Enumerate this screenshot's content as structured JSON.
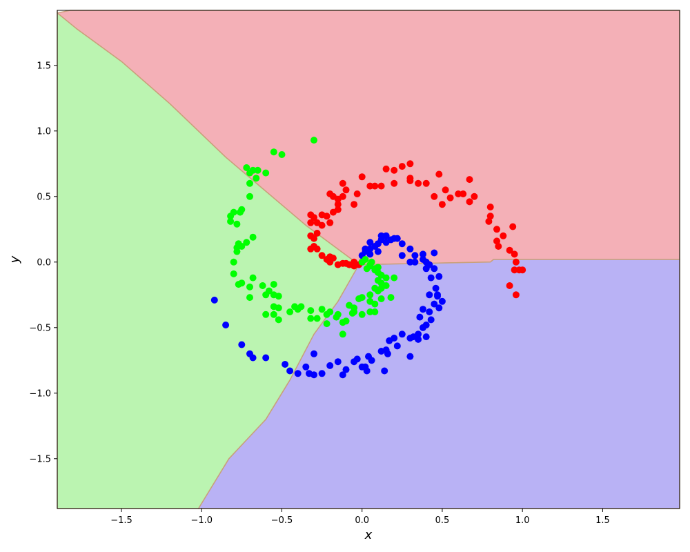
{
  "chart_data": {
    "type": "scatter",
    "title": "",
    "xlabel": "x",
    "ylabel": "y",
    "xlim": [
      -1.9,
      1.98
    ],
    "ylim": [
      -1.88,
      1.92
    ],
    "grid": false,
    "legend": "none",
    "xticks": [
      -1.5,
      -1.0,
      -0.5,
      0.0,
      0.5,
      1.0,
      1.5
    ],
    "yticks": [
      -1.5,
      -1.0,
      -0.5,
      0.0,
      0.5,
      1.0,
      1.5
    ],
    "xtick_labels": [
      "−1.5",
      "−1.0",
      "−0.5",
      "0.0",
      "0.5",
      "1.0",
      "1.5"
    ],
    "ytick_labels": [
      "−1.5",
      "−1.0",
      "−0.5",
      "0.0",
      "0.5",
      "1.0",
      "1.5"
    ],
    "decision_regions": [
      {
        "class": "red",
        "color": "#f4b0b7",
        "polygon": [
          [
            -1.9,
            1.9
          ],
          [
            -1.82,
            1.92
          ],
          [
            1.98,
            1.92
          ],
          [
            1.98,
            0.02
          ],
          [
            0.82,
            0.02
          ],
          [
            0.8,
            0.0
          ],
          [
            -0.02,
            -0.02
          ],
          [
            -0.35,
            0.28
          ],
          [
            -0.85,
            0.8
          ],
          [
            -1.2,
            1.21
          ],
          [
            -1.5,
            1.53
          ],
          [
            -1.78,
            1.78
          ]
        ]
      },
      {
        "class": "blue",
        "color": "#b9b2f5",
        "polygon": [
          [
            -0.02,
            -0.02
          ],
          [
            0.8,
            0.0
          ],
          [
            0.82,
            0.02
          ],
          [
            1.98,
            0.02
          ],
          [
            1.98,
            -1.88
          ],
          [
            -1.02,
            -1.88
          ],
          [
            -0.83,
            -1.5
          ],
          [
            -0.6,
            -1.2
          ],
          [
            -0.45,
            -0.9
          ],
          [
            -0.3,
            -0.55
          ],
          [
            -0.15,
            -0.3
          ]
        ]
      },
      {
        "class": "green",
        "color": "#bbf4b1",
        "polygon": [
          [
            -1.9,
            1.92
          ],
          [
            -1.9,
            1.9
          ],
          [
            -1.78,
            1.78
          ],
          [
            -1.5,
            1.53
          ],
          [
            -1.2,
            1.21
          ],
          [
            -0.85,
            0.8
          ],
          [
            -0.35,
            0.28
          ],
          [
            -0.02,
            -0.02
          ],
          [
            -0.15,
            -0.3
          ],
          [
            -0.3,
            -0.55
          ],
          [
            -0.45,
            -0.9
          ],
          [
            -0.6,
            -1.2
          ],
          [
            -0.83,
            -1.5
          ],
          [
            -1.02,
            -1.88
          ],
          [
            -1.9,
            -1.88
          ]
        ]
      }
    ],
    "boundary_color": "#c9a07a",
    "series": [
      {
        "color": "#ff0000",
        "points": [
          [
            -0.05,
            0.0
          ],
          [
            -0.02,
            -0.02
          ],
          [
            -0.08,
            -0.02
          ],
          [
            -0.12,
            -0.01
          ],
          [
            -0.15,
            -0.02
          ],
          [
            -0.2,
            0.0
          ],
          [
            -0.22,
            0.02
          ],
          [
            -0.18,
            0.03
          ],
          [
            -0.25,
            0.05
          ],
          [
            -0.28,
            0.1
          ],
          [
            -0.3,
            0.12
          ],
          [
            -0.32,
            0.1
          ],
          [
            -0.3,
            0.18
          ],
          [
            -0.32,
            0.2
          ],
          [
            -0.28,
            0.22
          ],
          [
            -0.32,
            0.3
          ],
          [
            -0.28,
            0.3
          ],
          [
            -0.25,
            0.36
          ],
          [
            -0.32,
            0.36
          ],
          [
            -0.3,
            0.34
          ],
          [
            -0.22,
            0.35
          ],
          [
            -0.2,
            0.3
          ],
          [
            -0.18,
            0.38
          ],
          [
            -0.15,
            0.44
          ],
          [
            -0.18,
            0.5
          ],
          [
            -0.15,
            0.48
          ],
          [
            -0.12,
            0.5
          ],
          [
            -0.1,
            0.55
          ],
          [
            -0.12,
            0.6
          ],
          [
            -0.05,
            0.44
          ],
          [
            -0.03,
            0.52
          ],
          [
            0.0,
            0.65
          ],
          [
            0.08,
            0.58
          ],
          [
            0.12,
            0.58
          ],
          [
            0.15,
            0.71
          ],
          [
            0.2,
            0.6
          ],
          [
            0.2,
            0.7
          ],
          [
            0.25,
            0.73
          ],
          [
            0.3,
            0.75
          ],
          [
            0.3,
            0.62
          ],
          [
            0.35,
            0.6
          ],
          [
            0.4,
            0.6
          ],
          [
            0.45,
            0.5
          ],
          [
            0.48,
            0.67
          ],
          [
            0.52,
            0.55
          ],
          [
            0.5,
            0.44
          ],
          [
            0.55,
            0.49
          ],
          [
            0.6,
            0.52
          ],
          [
            0.63,
            0.52
          ],
          [
            0.67,
            0.46
          ],
          [
            0.67,
            0.63
          ],
          [
            0.7,
            0.5
          ],
          [
            0.8,
            0.42
          ],
          [
            0.8,
            0.35
          ],
          [
            0.79,
            0.31
          ],
          [
            0.84,
            0.25
          ],
          [
            0.88,
            0.2
          ],
          [
            0.84,
            0.16
          ],
          [
            0.85,
            0.12
          ],
          [
            0.92,
            0.09
          ],
          [
            0.94,
            0.27
          ],
          [
            0.95,
            0.06
          ],
          [
            0.96,
            0.0
          ],
          [
            0.95,
            -0.06
          ],
          [
            0.98,
            -0.06
          ],
          [
            1.0,
            -0.06
          ],
          [
            0.92,
            -0.18
          ],
          [
            0.96,
            -0.25
          ],
          [
            -0.1,
            -0.01
          ],
          [
            -0.05,
            -0.03
          ],
          [
            0.0,
            0.0
          ],
          [
            -0.2,
            0.04
          ],
          [
            -0.25,
            0.28
          ],
          [
            -0.2,
            0.52
          ],
          [
            -0.15,
            0.4
          ],
          [
            0.05,
            0.58
          ],
          [
            0.3,
            0.64
          ]
        ]
      },
      {
        "color": "#0000ff",
        "points": [
          [
            0.0,
            0.05
          ],
          [
            0.02,
            0.08
          ],
          [
            0.05,
            0.15
          ],
          [
            0.08,
            0.12
          ],
          [
            0.1,
            0.14
          ],
          [
            0.12,
            0.17
          ],
          [
            0.15,
            0.2
          ],
          [
            0.15,
            0.15
          ],
          [
            0.18,
            0.17
          ],
          [
            0.2,
            0.18
          ],
          [
            0.22,
            0.18
          ],
          [
            0.25,
            0.14
          ],
          [
            0.3,
            0.1
          ],
          [
            0.25,
            0.05
          ],
          [
            0.33,
            0.05
          ],
          [
            0.38,
            0.06
          ],
          [
            0.38,
            0.02
          ],
          [
            0.42,
            -0.02
          ],
          [
            0.4,
            0.0
          ],
          [
            0.45,
            0.07
          ],
          [
            0.45,
            -0.05
          ],
          [
            0.43,
            -0.12
          ],
          [
            0.48,
            -0.11
          ],
          [
            0.46,
            -0.2
          ],
          [
            0.47,
            -0.25
          ],
          [
            0.5,
            -0.3
          ],
          [
            0.45,
            -0.32
          ],
          [
            0.48,
            -0.35
          ],
          [
            0.42,
            -0.38
          ],
          [
            0.43,
            -0.44
          ],
          [
            0.4,
            -0.48
          ],
          [
            0.38,
            -0.5
          ],
          [
            0.35,
            -0.55
          ],
          [
            0.4,
            -0.57
          ],
          [
            0.32,
            -0.57
          ],
          [
            0.35,
            -0.59
          ],
          [
            0.3,
            -0.58
          ],
          [
            0.25,
            -0.55
          ],
          [
            0.22,
            -0.64
          ],
          [
            0.17,
            -0.6
          ],
          [
            0.15,
            -0.67
          ],
          [
            0.16,
            -0.7
          ],
          [
            0.14,
            -0.83
          ],
          [
            0.06,
            -0.75
          ],
          [
            0.04,
            -0.72
          ],
          [
            0.02,
            -0.8
          ],
          [
            0.0,
            -0.8
          ],
          [
            -0.03,
            -0.74
          ],
          [
            -0.05,
            -0.76
          ],
          [
            -0.1,
            -0.82
          ],
          [
            -0.12,
            -0.86
          ],
          [
            -0.15,
            -0.76
          ],
          [
            -0.2,
            -0.79
          ],
          [
            -0.3,
            -0.7
          ],
          [
            -0.3,
            -0.86
          ],
          [
            -0.33,
            -0.85
          ],
          [
            -0.35,
            -0.8
          ],
          [
            -0.4,
            -0.85
          ],
          [
            -0.45,
            -0.83
          ],
          [
            -0.48,
            -0.78
          ],
          [
            -0.6,
            -0.73
          ],
          [
            -0.68,
            -0.73
          ],
          [
            -0.7,
            -0.7
          ],
          [
            -0.75,
            -0.63
          ],
          [
            -0.85,
            -0.48
          ],
          [
            -0.92,
            -0.29
          ],
          [
            0.05,
            0.06
          ],
          [
            0.1,
            0.08
          ],
          [
            0.3,
            -0.72
          ],
          [
            0.42,
            -0.25
          ],
          [
            0.36,
            -0.42
          ],
          [
            0.12,
            -0.68
          ],
          [
            0.05,
            0.1
          ],
          [
            0.3,
            0.0
          ],
          [
            0.02,
            0.1
          ],
          [
            0.33,
            0.0
          ],
          [
            0.4,
            -0.05
          ],
          [
            -0.25,
            -0.85
          ],
          [
            0.03,
            -0.83
          ],
          [
            0.12,
            0.2
          ],
          [
            0.2,
            -0.58
          ],
          [
            0.38,
            -0.36
          ],
          [
            0.47,
            -0.26
          ]
        ]
      },
      {
        "color": "#00ff00",
        "points": [
          [
            0.0,
            0.0
          ],
          [
            0.02,
            0.02
          ],
          [
            0.05,
            -0.02
          ],
          [
            0.06,
            0.0
          ],
          [
            0.08,
            -0.05
          ],
          [
            0.1,
            -0.08
          ],
          [
            0.12,
            -0.1
          ],
          [
            0.1,
            -0.14
          ],
          [
            0.12,
            -0.16
          ],
          [
            0.15,
            -0.12
          ],
          [
            0.2,
            -0.12
          ],
          [
            0.18,
            -0.27
          ],
          [
            0.12,
            -0.28
          ],
          [
            0.08,
            -0.2
          ],
          [
            0.05,
            -0.25
          ],
          [
            0.05,
            -0.3
          ],
          [
            0.05,
            -0.38
          ],
          [
            0.08,
            -0.38
          ],
          [
            0.08,
            -0.32
          ],
          [
            0.0,
            -0.27
          ],
          [
            -0.02,
            -0.28
          ],
          [
            0.0,
            -0.4
          ],
          [
            -0.05,
            -0.35
          ],
          [
            -0.08,
            -0.33
          ],
          [
            -0.06,
            -0.39
          ],
          [
            -0.1,
            -0.45
          ],
          [
            -0.12,
            -0.46
          ],
          [
            -0.15,
            -0.4
          ],
          [
            -0.2,
            -0.38
          ],
          [
            -0.12,
            -0.55
          ],
          [
            -0.22,
            -0.47
          ],
          [
            -0.22,
            -0.4
          ],
          [
            -0.25,
            -0.36
          ],
          [
            -0.28,
            -0.43
          ],
          [
            -0.32,
            -0.43
          ],
          [
            -0.32,
            -0.37
          ],
          [
            -0.38,
            -0.34
          ],
          [
            -0.4,
            -0.36
          ],
          [
            -0.45,
            -0.38
          ],
          [
            -0.52,
            -0.44
          ],
          [
            -0.55,
            -0.4
          ],
          [
            -0.52,
            -0.35
          ],
          [
            -0.55,
            -0.34
          ],
          [
            -0.6,
            -0.4
          ],
          [
            -0.55,
            -0.25
          ],
          [
            -0.52,
            -0.26
          ],
          [
            -0.58,
            -0.22
          ],
          [
            -0.6,
            -0.25
          ],
          [
            -0.62,
            -0.18
          ],
          [
            -0.55,
            -0.17
          ],
          [
            -0.68,
            -0.12
          ],
          [
            -0.7,
            -0.19
          ],
          [
            -0.7,
            -0.27
          ],
          [
            -0.75,
            -0.16
          ],
          [
            -0.77,
            -0.17
          ],
          [
            -0.8,
            -0.09
          ],
          [
            -0.8,
            0.0
          ],
          [
            -0.78,
            0.08
          ],
          [
            -0.78,
            0.11
          ],
          [
            -0.75,
            0.12
          ],
          [
            -0.72,
            0.15
          ],
          [
            -0.77,
            0.14
          ],
          [
            -0.68,
            0.19
          ],
          [
            -0.78,
            0.29
          ],
          [
            -0.82,
            0.31
          ],
          [
            -0.82,
            0.35
          ],
          [
            -0.8,
            0.38
          ],
          [
            -0.76,
            0.38
          ],
          [
            -0.75,
            0.4
          ],
          [
            -0.7,
            0.5
          ],
          [
            -0.7,
            0.6
          ],
          [
            -0.7,
            0.68
          ],
          [
            -0.68,
            0.7
          ],
          [
            -0.65,
            0.7
          ],
          [
            -0.66,
            0.64
          ],
          [
            -0.6,
            0.68
          ],
          [
            -0.55,
            0.84
          ],
          [
            -0.5,
            0.82
          ],
          [
            -0.3,
            0.93
          ],
          [
            0.05,
            -0.03
          ],
          [
            0.08,
            -0.06
          ],
          [
            0.1,
            -0.04
          ],
          [
            0.15,
            -0.18
          ],
          [
            -0.72,
            0.72
          ],
          [
            -0.42,
            -0.34
          ],
          [
            0.12,
            -0.2
          ],
          [
            0.03,
            -0.05
          ],
          [
            0.1,
            -0.22
          ],
          [
            -0.16,
            -0.42
          ],
          [
            -0.05,
            -0.38
          ]
        ]
      }
    ]
  }
}
